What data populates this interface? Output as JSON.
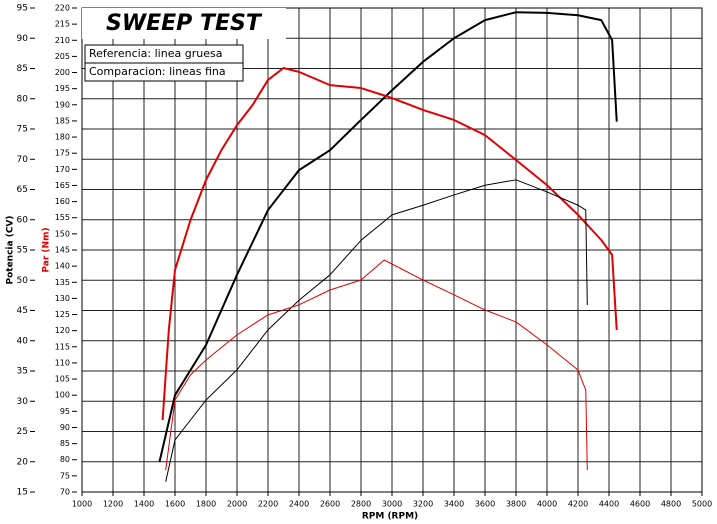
{
  "chart_data": {
    "type": "line",
    "title": "SWEEP TEST",
    "annotations": [
      "Referencia: linea gruesa",
      "Comparacion: lineas fina"
    ],
    "x_label": "RPM (RPM)",
    "y_label": "Potencia (CV)",
    "y2_label": "Par (Nm)",
    "y2_label_color": "#e00000",
    "xlim": [
      1000,
      5000
    ],
    "xticks": [
      1000,
      1200,
      1400,
      1600,
      1800,
      2000,
      2200,
      2400,
      2600,
      2800,
      3000,
      3200,
      3400,
      3600,
      3800,
      4000,
      4200,
      4400,
      4600,
      4800,
      5000
    ],
    "ylim": [
      15,
      95
    ],
    "yticks": [
      15,
      20,
      25,
      30,
      35,
      40,
      45,
      50,
      55,
      60,
      65,
      70,
      75,
      80,
      85,
      90,
      95
    ],
    "y2lim": [
      70,
      220
    ],
    "y2ticks": [
      70,
      75,
      80,
      85,
      90,
      95,
      100,
      105,
      110,
      115,
      120,
      125,
      130,
      135,
      140,
      145,
      150,
      155,
      160,
      165,
      170,
      175,
      180,
      185,
      190,
      195,
      200,
      205,
      210,
      215,
      220
    ],
    "grid": true,
    "series": [
      {
        "color": "#000000",
        "width": 2,
        "axis": "y",
        "x": [
          1500,
          1600,
          1800,
          2000,
          2200,
          2400,
          2600,
          2800,
          3000,
          3200,
          3400,
          3600,
          3800,
          4000,
          4200,
          4350,
          4420,
          4450
        ],
        "values": [
          20,
          31,
          39.3,
          50.9,
          61.6,
          68.2,
          71.5,
          76.5,
          81.4,
          86.1,
          90,
          93,
          94.3,
          94.2,
          93.8,
          93,
          89.7,
          76.2
        ]
      },
      {
        "color": "#e00000",
        "width": 2,
        "axis": "y2",
        "x": [
          1520,
          1560,
          1600,
          1700,
          1800,
          1900,
          2000,
          2100,
          2200,
          2300,
          2400,
          2600,
          2800,
          3000,
          3200,
          3400,
          3600,
          3800,
          4000,
          4200,
          4350,
          4420,
          4450
        ],
        "values": [
          92.3,
          120.2,
          138.8,
          154.3,
          166.7,
          176,
          183.7,
          189.9,
          197.7,
          201.4,
          200.2,
          196.1,
          195.2,
          192.1,
          188.4,
          185.3,
          180.6,
          172.9,
          165.1,
          155.9,
          148.1,
          143.5,
          120.2
        ]
      },
      {
        "color": "#000000",
        "width": 1,
        "axis": "y",
        "x": [
          1540,
          1600,
          1700,
          1800,
          2000,
          2200,
          2400,
          2600,
          2800,
          3000,
          3200,
          3400,
          3600,
          3800,
          4000,
          4200,
          4250,
          4260
        ],
        "values": [
          16.7,
          23.6,
          26.9,
          30.2,
          35.2,
          41.8,
          46.7,
          50.9,
          56.6,
          60.8,
          62.4,
          64.1,
          65.7,
          66.6,
          64.6,
          62.4,
          61.6,
          45.9
        ]
      },
      {
        "color": "#e00000",
        "width": 1,
        "axis": "y2",
        "x": [
          1540,
          1600,
          1700,
          1800,
          2000,
          2200,
          2400,
          2600,
          2800,
          2950,
          3200,
          3400,
          3600,
          3800,
          4000,
          4200,
          4250,
          4260
        ],
        "values": [
          76.8,
          98.5,
          106.3,
          110.9,
          118.7,
          124.9,
          128,
          132.6,
          135.7,
          141.9,
          135.7,
          131.1,
          126.4,
          122.7,
          115.6,
          107.8,
          101.6,
          76.8
        ]
      }
    ]
  }
}
